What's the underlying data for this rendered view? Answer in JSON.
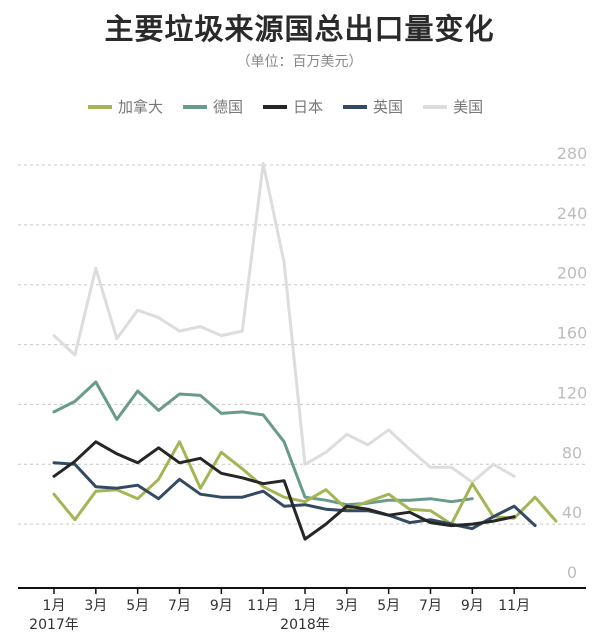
{
  "header": {
    "title": "主要垃圾来源国总出口量变化",
    "subtitle": "（单位：百万美元）"
  },
  "chart_data": {
    "type": "line",
    "title": "主要垃圾来源国总出口量变化",
    "subtitle": "（单位：百万美元）",
    "ylim": [
      0,
      280
    ],
    "y_ticks": [
      0,
      40,
      80,
      120,
      160,
      200,
      240,
      280
    ],
    "grid": true,
    "legend_position": "top",
    "x_tick_labels": [
      {
        "index": 0,
        "label": "1月"
      },
      {
        "index": 2,
        "label": "3月"
      },
      {
        "index": 4,
        "label": "5月"
      },
      {
        "index": 6,
        "label": "7月"
      },
      {
        "index": 8,
        "label": "9月"
      },
      {
        "index": 10,
        "label": "11月"
      },
      {
        "index": 12,
        "label": "1月"
      },
      {
        "index": 14,
        "label": "3月"
      },
      {
        "index": 16,
        "label": "5月"
      },
      {
        "index": 18,
        "label": "7月"
      },
      {
        "index": 20,
        "label": "9月"
      },
      {
        "index": 22,
        "label": "11月"
      }
    ],
    "year_labels": [
      {
        "index": 0,
        "label": "2017年"
      },
      {
        "index": 12,
        "label": "2018年"
      }
    ],
    "series": [
      {
        "name": "加拿大",
        "color": "#a4b555",
        "values": [
          60,
          43,
          62,
          63,
          57,
          70,
          95,
          64,
          88,
          77,
          65,
          58,
          55,
          63,
          50,
          55,
          60,
          50,
          49,
          40,
          67,
          45,
          44,
          58,
          42
        ]
      },
      {
        "name": "德国",
        "color": "#6a9a89",
        "values": [
          115,
          122,
          135,
          110,
          129,
          116,
          127,
          126,
          114,
          115,
          113,
          95,
          58,
          56,
          53,
          54,
          56,
          56,
          57,
          55,
          57
        ]
      },
      {
        "name": "日本",
        "color": "#262626",
        "values": [
          72,
          82,
          95,
          87,
          81,
          91,
          81,
          84,
          74,
          71,
          67,
          69,
          30,
          40,
          52,
          50,
          46,
          48,
          41,
          39,
          40,
          42,
          45
        ]
      },
      {
        "name": "英国",
        "color": "#344a62",
        "values": [
          81,
          80,
          65,
          64,
          66,
          57,
          70,
          60,
          58,
          58,
          62,
          52,
          53,
          50,
          49,
          49,
          46,
          41,
          43,
          40,
          37,
          45,
          52,
          39
        ]
      },
      {
        "name": "美国",
        "color": "#dddddd",
        "values": [
          166,
          153,
          211,
          164,
          183,
          178,
          169,
          172,
          166,
          169,
          281,
          215,
          80,
          88,
          100,
          93,
          103,
          90,
          78,
          78,
          68,
          80,
          72
        ]
      }
    ]
  }
}
